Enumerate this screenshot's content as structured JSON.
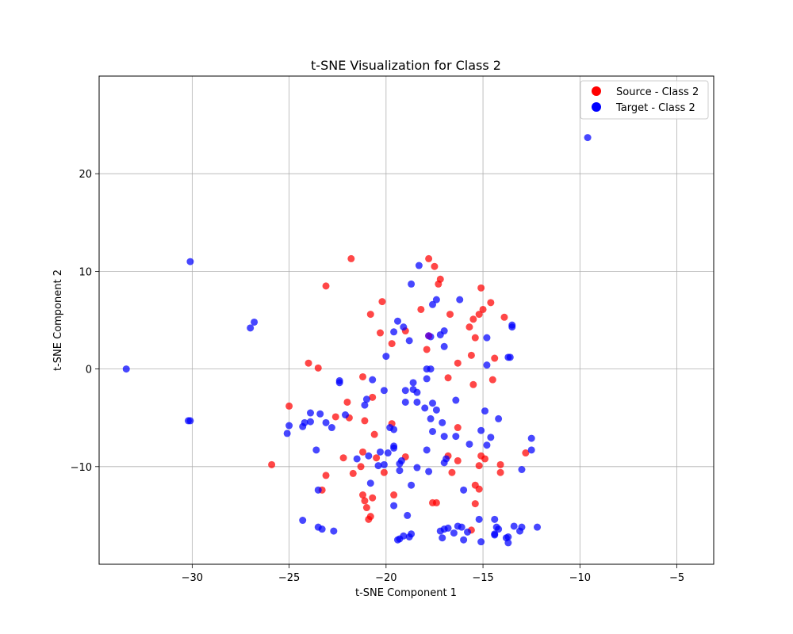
{
  "chart_data": {
    "type": "scatter",
    "title": "t-SNE Visualization for Class 2",
    "xlabel": "t-SNE Component 1",
    "ylabel": "t-SNE Component 2",
    "xlim": [
      -34.8,
      -3.1
    ],
    "ylim": [
      -20.0,
      30.0
    ],
    "xticks": [
      -30,
      -25,
      -20,
      -15,
      -10,
      -5
    ],
    "xtick_labels": [
      "−30",
      "−25",
      "−20",
      "−15",
      "−10",
      "−5"
    ],
    "yticks": [
      -10,
      0,
      10,
      20
    ],
    "ytick_labels": [
      "−10",
      "0",
      "10",
      "20"
    ],
    "grid": true,
    "legend_position": "top-right",
    "series": [
      {
        "name": "Source - Class 2",
        "color": "#ff0000",
        "points": [
          [
            -21.8,
            11.3
          ],
          [
            -17.8,
            11.3
          ],
          [
            -17.5,
            10.5
          ],
          [
            -23.1,
            8.5
          ],
          [
            -17.2,
            9.2
          ],
          [
            -17.3,
            8.7
          ],
          [
            -15.1,
            8.3
          ],
          [
            -20.2,
            6.9
          ],
          [
            -14.6,
            6.8
          ],
          [
            -18.2,
            6.1
          ],
          [
            -15.0,
            6.1
          ],
          [
            -20.8,
            5.6
          ],
          [
            -16.7,
            5.6
          ],
          [
            -15.2,
            5.6
          ],
          [
            -13.9,
            5.3
          ],
          [
            -15.5,
            5.1
          ],
          [
            -15.7,
            4.3
          ],
          [
            -19.0,
            3.9
          ],
          [
            -20.3,
            3.7
          ],
          [
            -15.4,
            3.2
          ],
          [
            -19.7,
            2.6
          ],
          [
            -17.9,
            2.0
          ],
          [
            -15.6,
            1.4
          ],
          [
            -14.4,
            1.1
          ],
          [
            -24.0,
            0.6
          ],
          [
            -16.3,
            0.6
          ],
          [
            -23.5,
            0.1
          ],
          [
            -21.2,
            -0.8
          ],
          [
            -16.8,
            -0.9
          ],
          [
            -14.5,
            -1.1
          ],
          [
            -15.5,
            -1.6
          ],
          [
            -20.7,
            -2.9
          ],
          [
            -22.0,
            -3.4
          ],
          [
            -25.0,
            -3.8
          ],
          [
            -22.6,
            -4.9
          ],
          [
            -21.9,
            -5.0
          ],
          [
            -21.1,
            -5.3
          ],
          [
            -19.7,
            -5.6
          ],
          [
            -16.3,
            -6.0
          ],
          [
            -20.6,
            -6.7
          ],
          [
            -12.8,
            -8.6
          ],
          [
            -21.2,
            -8.5
          ],
          [
            -16.8,
            -8.9
          ],
          [
            -20.5,
            -9.1
          ],
          [
            -19.0,
            -9.0
          ],
          [
            -22.2,
            -9.1
          ],
          [
            -15.1,
            -8.9
          ],
          [
            -14.9,
            -9.2
          ],
          [
            -16.3,
            -9.4
          ],
          [
            -21.3,
            -10.0
          ],
          [
            -14.1,
            -9.8
          ],
          [
            -15.2,
            -9.9
          ],
          [
            -25.9,
            -9.8
          ],
          [
            -20.1,
            -10.6
          ],
          [
            -21.7,
            -10.7
          ],
          [
            -16.6,
            -10.6
          ],
          [
            -14.1,
            -10.6
          ],
          [
            -23.1,
            -10.9
          ],
          [
            -15.4,
            -11.9
          ],
          [
            -15.2,
            -12.3
          ],
          [
            -23.3,
            -12.4
          ],
          [
            -21.2,
            -12.9
          ],
          [
            -19.6,
            -12.9
          ],
          [
            -20.7,
            -13.2
          ],
          [
            -21.1,
            -13.5
          ],
          [
            -17.6,
            -13.7
          ],
          [
            -17.4,
            -13.7
          ],
          [
            -15.4,
            -13.8
          ],
          [
            -21.0,
            -14.2
          ],
          [
            -20.8,
            -15.1
          ],
          [
            -20.9,
            -15.4
          ],
          [
            -15.6,
            -16.5
          ]
        ]
      },
      {
        "name": "Target - Class 2",
        "color": "#0000ff",
        "points": [
          [
            -9.6,
            23.7
          ],
          [
            -30.1,
            11.0
          ],
          [
            -18.3,
            10.6
          ],
          [
            -18.7,
            8.7
          ],
          [
            -17.4,
            7.1
          ],
          [
            -16.2,
            7.1
          ],
          [
            -17.6,
            6.6
          ],
          [
            -26.8,
            4.8
          ],
          [
            -27.0,
            4.2
          ],
          [
            -19.4,
            4.9
          ],
          [
            -19.1,
            4.3
          ],
          [
            -13.5,
            4.5
          ],
          [
            -13.5,
            4.3
          ],
          [
            -19.6,
            3.8
          ],
          [
            -17.0,
            3.9
          ],
          [
            -17.8,
            3.4
          ],
          [
            -17.7,
            3.3
          ],
          [
            -17.2,
            3.5
          ],
          [
            -14.8,
            3.2
          ],
          [
            -18.8,
            2.9
          ],
          [
            -17.0,
            2.3
          ],
          [
            -13.7,
            1.2
          ],
          [
            -13.6,
            1.2
          ],
          [
            -20.0,
            1.3
          ],
          [
            -14.8,
            0.4
          ],
          [
            -33.4,
            0.0
          ],
          [
            -17.9,
            0.0
          ],
          [
            -17.7,
            0.0
          ],
          [
            -22.4,
            -1.2
          ],
          [
            -22.4,
            -1.4
          ],
          [
            -21.1,
            -3.7
          ],
          [
            -20.7,
            -1.1
          ],
          [
            -17.9,
            -1.0
          ],
          [
            -18.6,
            -1.4
          ],
          [
            -20.1,
            -2.2
          ],
          [
            -19.0,
            -2.2
          ],
          [
            -18.6,
            -2.1
          ],
          [
            -18.4,
            -2.4
          ],
          [
            -21.0,
            -3.1
          ],
          [
            -16.4,
            -3.2
          ],
          [
            -19.0,
            -3.4
          ],
          [
            -18.4,
            -3.4
          ],
          [
            -17.6,
            -3.5
          ],
          [
            -18.0,
            -4.0
          ],
          [
            -17.4,
            -4.2
          ],
          [
            -14.9,
            -4.3
          ],
          [
            -23.9,
            -4.5
          ],
          [
            -23.4,
            -4.6
          ],
          [
            -22.1,
            -4.7
          ],
          [
            -30.1,
            -5.3
          ],
          [
            -30.2,
            -5.3
          ],
          [
            -17.7,
            -5.1
          ],
          [
            -14.2,
            -5.1
          ],
          [
            -23.9,
            -5.4
          ],
          [
            -24.2,
            -5.5
          ],
          [
            -23.1,
            -5.5
          ],
          [
            -17.1,
            -5.5
          ],
          [
            -25.0,
            -5.8
          ],
          [
            -24.3,
            -5.9
          ],
          [
            -22.8,
            -6.0
          ],
          [
            -19.8,
            -6.0
          ],
          [
            -19.6,
            -6.2
          ],
          [
            -15.1,
            -6.3
          ],
          [
            -17.6,
            -6.4
          ],
          [
            -25.1,
            -6.6
          ],
          [
            -16.4,
            -6.9
          ],
          [
            -17.0,
            -6.9
          ],
          [
            -14.6,
            -7.0
          ],
          [
            -12.5,
            -7.1
          ],
          [
            -15.7,
            -7.7
          ],
          [
            -14.8,
            -7.8
          ],
          [
            -19.6,
            -7.9
          ],
          [
            -19.6,
            -8.1
          ],
          [
            -23.6,
            -8.3
          ],
          [
            -17.9,
            -8.3
          ],
          [
            -12.5,
            -8.3
          ],
          [
            -20.3,
            -8.5
          ],
          [
            -19.9,
            -8.6
          ],
          [
            -20.9,
            -8.9
          ],
          [
            -21.5,
            -9.2
          ],
          [
            -16.9,
            -9.2
          ],
          [
            -19.2,
            -9.4
          ],
          [
            -17.0,
            -9.6
          ],
          [
            -19.3,
            -9.7
          ],
          [
            -20.1,
            -9.8
          ],
          [
            -20.4,
            -9.9
          ],
          [
            -18.4,
            -10.1
          ],
          [
            -19.3,
            -10.4
          ],
          [
            -17.8,
            -10.5
          ],
          [
            -13.0,
            -10.3
          ],
          [
            -20.8,
            -11.7
          ],
          [
            -18.7,
            -11.9
          ],
          [
            -16.0,
            -12.4
          ],
          [
            -23.5,
            -12.4
          ],
          [
            -19.6,
            -14.0
          ],
          [
            -18.9,
            -15.0
          ],
          [
            -24.3,
            -15.5
          ],
          [
            -15.2,
            -15.4
          ],
          [
            -14.4,
            -15.4
          ],
          [
            -23.5,
            -16.2
          ],
          [
            -23.3,
            -16.4
          ],
          [
            -22.7,
            -16.6
          ],
          [
            -16.3,
            -16.1
          ],
          [
            -16.1,
            -16.2
          ],
          [
            -16.8,
            -16.3
          ],
          [
            -13.4,
            -16.1
          ],
          [
            -13.0,
            -16.2
          ],
          [
            -12.2,
            -16.2
          ],
          [
            -14.3,
            -16.2
          ],
          [
            -14.2,
            -16.4
          ],
          [
            -15.8,
            -16.7
          ],
          [
            -17.2,
            -16.6
          ],
          [
            -17.0,
            -16.4
          ],
          [
            -13.1,
            -16.6
          ],
          [
            -14.4,
            -16.9
          ],
          [
            -14.4,
            -17.0
          ],
          [
            -18.7,
            -16.9
          ],
          [
            -18.8,
            -17.2
          ],
          [
            -19.1,
            -17.1
          ],
          [
            -16.5,
            -16.8
          ],
          [
            -17.1,
            -17.3
          ],
          [
            -13.7,
            -17.2
          ],
          [
            -13.8,
            -17.3
          ],
          [
            -16.0,
            -17.5
          ],
          [
            -19.4,
            -17.5
          ],
          [
            -19.3,
            -17.4
          ],
          [
            -15.1,
            -17.7
          ],
          [
            -13.7,
            -17.8
          ]
        ]
      },
      {
        "name": "",
        "color": "#7f00bf",
        "points": [
          [
            -17.8,
            3.4
          ]
        ]
      }
    ]
  }
}
